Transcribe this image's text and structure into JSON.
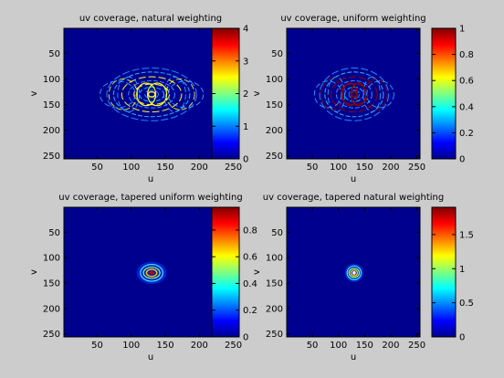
{
  "figure": {
    "background": "#cccccc"
  },
  "chart_data": [
    {
      "type": "heatmap",
      "title": "uv coverage, natural weighting",
      "xlabel": "u",
      "ylabel": "v",
      "xlim": [
        1,
        256
      ],
      "ylim": [
        1,
        256
      ],
      "y_reversed": true,
      "x_ticks": [
        50,
        100,
        150,
        200,
        250
      ],
      "y_ticks": [
        50,
        100,
        150,
        200,
        250
      ],
      "colormap": "jet",
      "colorbar": {
        "range": [
          0,
          4
        ],
        "ticks": [
          0,
          1,
          2,
          3,
          4
        ],
        "tick_labels": [
          "0",
          "1",
          "2",
          "3",
          "4"
        ]
      },
      "pattern": "wide",
      "peak_color": "#ffff30",
      "background_value": 0,
      "center": [
        130,
        130
      ],
      "extent_radius": 70
    },
    {
      "type": "heatmap",
      "title": "uv coverage, uniform weighting",
      "xlabel": "u",
      "ylabel": "v",
      "xlim": [
        1,
        256
      ],
      "ylim": [
        1,
        256
      ],
      "y_reversed": true,
      "x_ticks": [
        50,
        100,
        150,
        200,
        250
      ],
      "y_ticks": [
        50,
        100,
        150,
        200,
        250
      ],
      "colormap": "jet",
      "colorbar": {
        "range": [
          0,
          1
        ],
        "ticks": [
          0,
          0.2,
          0.4,
          0.6,
          0.8,
          1
        ],
        "tick_labels": [
          "0",
          "0.2",
          "0.4",
          "0.6",
          "0.8",
          "1"
        ]
      },
      "pattern": "wide",
      "peak_color": "#900000",
      "background_value": 0,
      "center": [
        130,
        130
      ],
      "extent_radius": 70
    },
    {
      "type": "heatmap",
      "title": "uv coverage, tapered uniform weighting",
      "xlabel": "u",
      "ylabel": "v",
      "xlim": [
        1,
        256
      ],
      "ylim": [
        1,
        256
      ],
      "y_reversed": true,
      "x_ticks": [
        50,
        100,
        150,
        200,
        250
      ],
      "y_ticks": [
        50,
        100,
        150,
        200,
        250
      ],
      "colormap": "jet",
      "colorbar": {
        "range": [
          0,
          0.97
        ],
        "ticks": [
          0,
          0.2,
          0.4,
          0.6,
          0.8
        ],
        "tick_labels": [
          "0",
          "0.2",
          "0.4",
          "0.6",
          "0.8"
        ]
      },
      "pattern": "compact",
      "peak_color": "#b00000",
      "background_value": 0,
      "center": [
        130,
        130
      ],
      "extent_radius": 22
    },
    {
      "type": "heatmap",
      "title": "uv coverage, tapered natural weighting",
      "xlabel": "u",
      "ylabel": "v",
      "xlim": [
        1,
        256
      ],
      "ylim": [
        1,
        256
      ],
      "y_reversed": true,
      "x_ticks": [
        50,
        100,
        150,
        200,
        250
      ],
      "y_ticks": [
        50,
        100,
        150,
        200,
        250
      ],
      "colormap": "jet",
      "colorbar": {
        "range": [
          0,
          1.9
        ],
        "ticks": [
          0,
          0.5,
          1,
          1.5
        ],
        "tick_labels": [
          "0",
          "0.5",
          "1",
          "1.5"
        ]
      },
      "pattern": "compact",
      "peak_color": "#ffffff",
      "background_value": 0,
      "center": [
        130,
        130
      ],
      "extent_radius": 18
    }
  ]
}
